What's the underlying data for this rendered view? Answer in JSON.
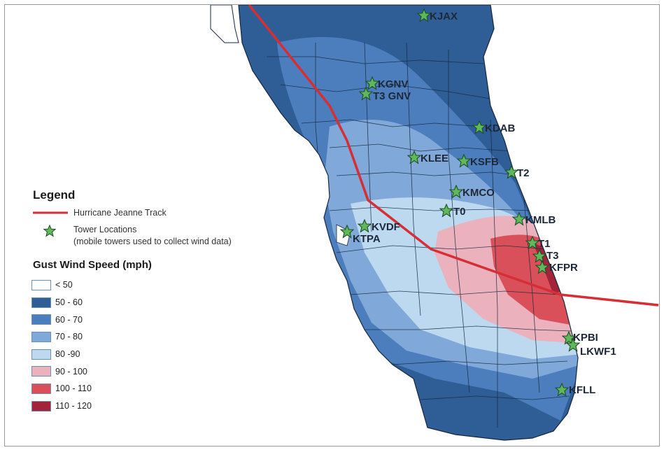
{
  "legend": {
    "title": "Legend",
    "track_label": "Hurricane Jeanne Track",
    "tower_label": "Tower Locations",
    "tower_note": "(mobile towers used to collect wind data)",
    "gust_title": "Gust Wind Speed (mph)",
    "classes": [
      {
        "label": "< 50",
        "color": "#ffffff"
      },
      {
        "label": "50 - 60",
        "color": "#2e5e95"
      },
      {
        "label": "60 - 70",
        "color": "#4c7ebd"
      },
      {
        "label": "70 - 80",
        "color": "#80a8d8"
      },
      {
        "label": "80 -90",
        "color": "#bcd9f0"
      },
      {
        "label": "90 - 100",
        "color": "#ebb1bc"
      },
      {
        "label": "100 - 110",
        "color": "#d9505a"
      },
      {
        "label": "110 - 120",
        "color": "#a3243a"
      }
    ]
  },
  "colors": {
    "track": "#d62e35",
    "star_fill": "#5fb85a",
    "star_stroke": "#1e4d26",
    "county_lines": "#16273d"
  },
  "stations": {
    "KJAX": "KJAX",
    "KGNV": "KGNV",
    "T3_GNV": "T3  GNV",
    "KDAB": "KDAB",
    "KLEE": "KLEE",
    "KSFB": "KSFB",
    "T2": "T2",
    "KMCO": "KMCO",
    "T0": "T0",
    "KMLB": "KMLB",
    "KVDF": "KVDF",
    "KTPA": "KTPA",
    "T1": "T1",
    "T3": "T3",
    "KFPR": "KFPR",
    "KPBI": "KPBI",
    "LKWF1": "LKWF1",
    "KFLL": "KFLL"
  }
}
